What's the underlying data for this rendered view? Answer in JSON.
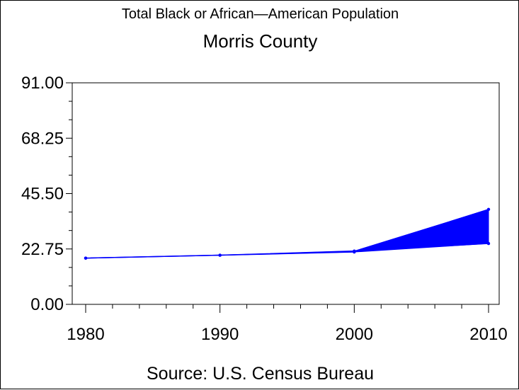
{
  "chart_data": {
    "type": "line",
    "title": "Total Black or African—American Population",
    "subtitle": "Morris County",
    "source": "Source: U.S. Census Bureau",
    "x": [
      1980,
      1990,
      2000,
      2010
    ],
    "xticks": [
      "1980",
      "1990",
      "2000",
      "2010"
    ],
    "yticks": [
      "0.00",
      "22.75",
      "45.50",
      "68.25",
      "91.00"
    ],
    "ylim": [
      0,
      91
    ],
    "xlim": [
      1980,
      2010
    ],
    "series": [
      {
        "values": [
          19,
          20.2,
          21.5,
          39
        ]
      },
      {
        "values": [
          19,
          20.2,
          21.9,
          25
        ]
      }
    ],
    "fill_between": true,
    "grid": false,
    "color": "#0000ff"
  }
}
